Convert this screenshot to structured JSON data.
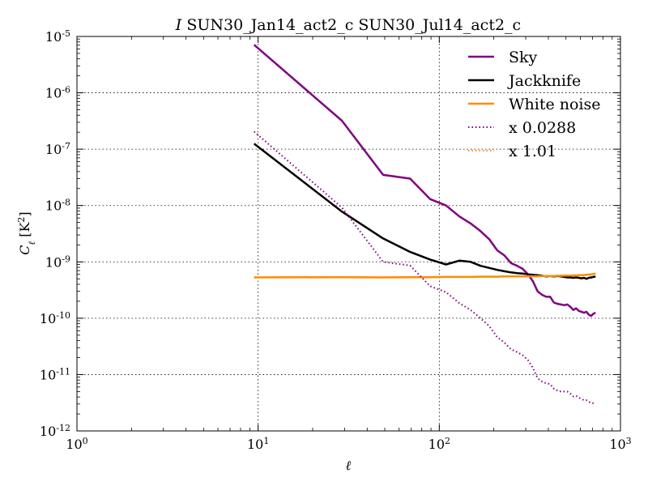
{
  "chart_data": {
    "type": "line",
    "title_symbol": "I",
    "title_text": "SUN30_Jan14_act2_c SUN30_Jul14_act2_c",
    "xlabel": "ℓ",
    "ylabel_main": "C",
    "ylabel_sub": "ℓ",
    "ylabel_unit_pre": " [K",
    "ylabel_unit_exp": "2",
    "ylabel_unit_post": "]",
    "x_scale": "log",
    "y_scale": "log",
    "xlim": [
      1,
      1000
    ],
    "ylim": [
      1e-12,
      1e-05
    ],
    "grid": true,
    "legend_position": "top-right",
    "x_ticks": [
      {
        "value": 1,
        "base": "10",
        "exp": "0"
      },
      {
        "value": 10,
        "base": "10",
        "exp": "1"
      },
      {
        "value": 100,
        "base": "10",
        "exp": "2"
      },
      {
        "value": 1000,
        "base": "10",
        "exp": "3"
      }
    ],
    "y_ticks": [
      {
        "value": 1e-12,
        "base": "10",
        "exp": "-12"
      },
      {
        "value": 1e-11,
        "base": "10",
        "exp": "-11"
      },
      {
        "value": 1e-10,
        "base": "10",
        "exp": "-10"
      },
      {
        "value": 1e-09,
        "base": "10",
        "exp": "-9"
      },
      {
        "value": 1e-08,
        "base": "10",
        "exp": "-8"
      },
      {
        "value": 1e-07,
        "base": "10",
        "exp": "-7"
      },
      {
        "value": 1e-06,
        "base": "10",
        "exp": "-6"
      },
      {
        "value": 1e-05,
        "base": "10",
        "exp": "-5"
      }
    ],
    "series": [
      {
        "name": "Sky",
        "color": "#800080",
        "style": "solid",
        "x": [
          9.5,
          29,
          49,
          69,
          89,
          109,
          129,
          149,
          169,
          189,
          209,
          229,
          249,
          269,
          289,
          309,
          329,
          349,
          369,
          389,
          409,
          429,
          449,
          469,
          489,
          509,
          529,
          549,
          569,
          589,
          609,
          629,
          649,
          669,
          689,
          709,
          729
        ],
        "y": [
          7.1e-06,
          3.2e-07,
          3.5e-08,
          3e-08,
          1.3e-08,
          1e-08,
          6.4e-09,
          4.8e-09,
          3.5e-09,
          2.5e-09,
          1.6e-09,
          1.3e-09,
          9.5e-10,
          8.5e-10,
          7.5e-10,
          6e-10,
          4.5e-10,
          3e-10,
          2.6e-10,
          2.4e-10,
          2.4e-10,
          1.9e-10,
          1.8e-10,
          1.75e-10,
          1.7e-10,
          1.75e-10,
          1.6e-10,
          1.4e-10,
          1.5e-10,
          1.35e-10,
          1.3e-10,
          1.25e-10,
          1.3e-10,
          1.15e-10,
          1.1e-10,
          1.2e-10,
          1.25e-10
        ]
      },
      {
        "name": "Jackknife",
        "color": "#000000",
        "style": "solid",
        "x": [
          9.5,
          29,
          49,
          69,
          89,
          109,
          129,
          149,
          169,
          189,
          209,
          229,
          249,
          269,
          289,
          309,
          329,
          349,
          369,
          389,
          409,
          429,
          449,
          469,
          489,
          509,
          529,
          549,
          569,
          589,
          609,
          629,
          649,
          669,
          689,
          709,
          729
        ],
        "y": [
          1.25e-07,
          7.8e-09,
          2.6e-09,
          1.5e-09,
          1.1e-09,
          9e-10,
          1.05e-09,
          1e-09,
          8.5e-10,
          7.8e-10,
          7.2e-10,
          6.8e-10,
          6.5e-10,
          6.3e-10,
          6.2e-10,
          6e-10,
          5.9e-10,
          5.8e-10,
          5.7e-10,
          5.5e-10,
          5.6e-10,
          5.5e-10,
          5.6e-10,
          5.5e-10,
          5.4e-10,
          5.3e-10,
          5.3e-10,
          5.2e-10,
          5.3e-10,
          5.2e-10,
          5.1e-10,
          5.2e-10,
          5e-10,
          5.2e-10,
          5.3e-10,
          5.4e-10,
          5.5e-10
        ]
      },
      {
        "name": "White noise",
        "color": "#ff8c00",
        "style": "solid",
        "x": [
          9.5,
          29,
          49,
          69,
          89,
          109,
          129,
          149,
          169,
          189,
          209,
          229,
          249,
          269,
          289,
          309,
          329,
          349,
          369,
          389,
          409,
          429,
          449,
          469,
          489,
          509,
          529,
          549,
          569,
          589,
          609,
          629,
          649,
          669,
          689,
          709,
          729
        ],
        "y": [
          5.3e-10,
          5.35e-10,
          5.3e-10,
          5.35e-10,
          5.35e-10,
          5.4e-10,
          5.4e-10,
          5.4e-10,
          5.45e-10,
          5.45e-10,
          5.45e-10,
          5.5e-10,
          5.5e-10,
          5.5e-10,
          5.5e-10,
          5.55e-10,
          5.55e-10,
          5.55e-10,
          5.6e-10,
          5.6e-10,
          5.6e-10,
          5.6e-10,
          5.65e-10,
          5.65e-10,
          5.7e-10,
          5.7e-10,
          5.7e-10,
          5.75e-10,
          5.75e-10,
          5.8e-10,
          5.8e-10,
          5.85e-10,
          5.9e-10,
          5.95e-10,
          6e-10,
          6.1e-10,
          6.2e-10
        ]
      },
      {
        "name": "x 0.0288",
        "color": "#800080",
        "style": "dotted",
        "x": [
          9.5,
          29,
          49,
          69,
          89,
          109,
          129,
          149,
          169,
          189,
          209,
          229,
          249,
          269,
          289,
          309,
          329,
          349,
          369,
          389,
          409,
          429,
          449,
          469,
          489,
          509,
          529,
          549,
          569,
          589,
          609,
          629,
          649,
          669,
          689,
          709,
          729
        ],
        "y": [
          2.05e-07,
          9.2e-09,
          1e-09,
          8.6e-10,
          3.7e-10,
          2.9e-10,
          1.85e-10,
          1.4e-10,
          1e-10,
          7.2e-11,
          4.6e-11,
          3.7e-11,
          2.8e-11,
          2.5e-11,
          2.2e-11,
          1.8e-11,
          1.3e-11,
          8.6e-12,
          7.5e-12,
          7e-12,
          6.8e-12,
          5.6e-12,
          5.2e-12,
          5e-12,
          5e-12,
          5e-12,
          4.6e-12,
          4.1e-12,
          4.2e-12,
          3.9e-12,
          3.7e-12,
          3.5e-12,
          3.5e-12,
          3.3e-12,
          3.1e-12,
          3.1e-12,
          3e-12
        ]
      },
      {
        "name": "x 1.01",
        "color": "#ff8c00",
        "style": "dotted",
        "x": [
          9.5,
          29,
          49,
          69,
          89,
          109,
          129,
          149,
          169,
          189,
          209,
          229,
          249,
          269,
          289,
          309,
          329,
          349,
          369,
          389,
          409,
          429,
          449,
          469,
          489,
          509,
          529,
          549,
          569,
          589,
          609,
          629,
          649,
          669,
          689,
          709,
          729
        ],
        "y": [
          5.35e-10,
          5.4e-10,
          5.35e-10,
          5.4e-10,
          5.4e-10,
          5.45e-10,
          5.45e-10,
          5.45e-10,
          5.5e-10,
          5.5e-10,
          5.5e-10,
          5.55e-10,
          5.55e-10,
          5.55e-10,
          5.55e-10,
          5.6e-10,
          5.6e-10,
          5.6e-10,
          5.65e-10,
          5.65e-10,
          5.65e-10,
          5.65e-10,
          5.7e-10,
          5.7e-10,
          5.75e-10,
          5.75e-10,
          5.75e-10,
          5.8e-10,
          5.8e-10,
          5.85e-10,
          5.85e-10,
          5.9e-10,
          5.95e-10,
          6e-10,
          6.05e-10,
          6.15e-10,
          6.25e-10
        ]
      }
    ]
  }
}
